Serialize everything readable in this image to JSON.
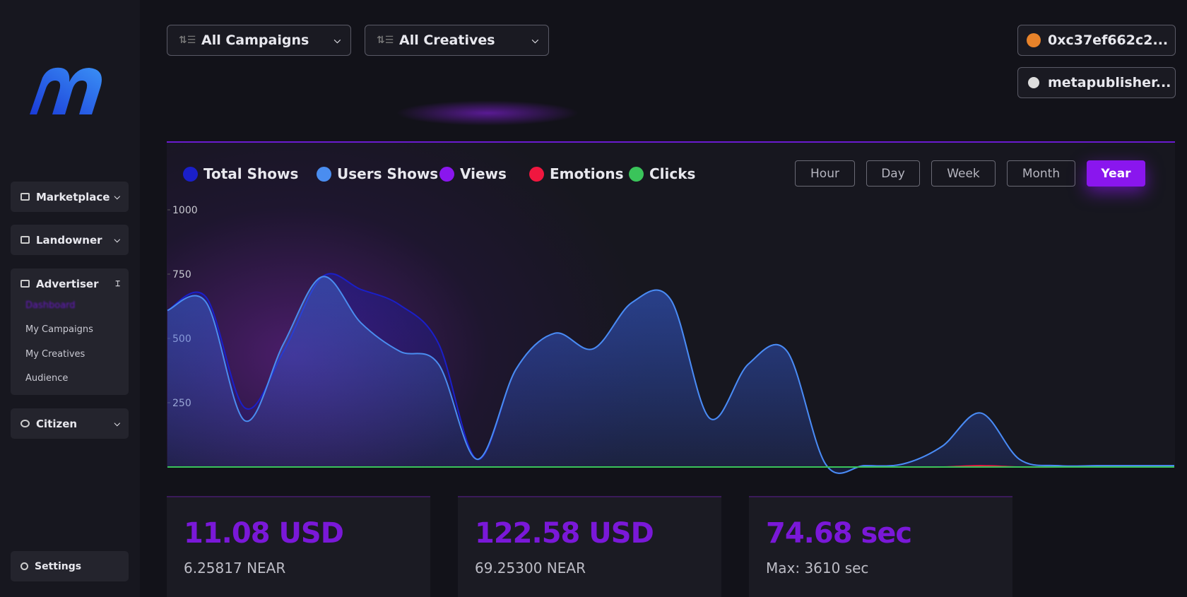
{
  "sidebar": {
    "items": [
      "Marketplace",
      "Landowner",
      "Advertiser",
      "Citizen"
    ],
    "advertiser_submenu": [
      "Dashboard",
      "My Campaigns",
      "My Creatives",
      "Audience"
    ],
    "settings": "Settings"
  },
  "filters": [
    "All Campaigns",
    "All Creatives"
  ],
  "account": {
    "wallet": "0xc37ef662c2...",
    "user": "metapublisher..."
  },
  "chart_data": {
    "type": "line",
    "range_buttons": [
      "Hour",
      "Day",
      "Week",
      "Month",
      "Year"
    ],
    "ylim": [
      0,
      1000
    ],
    "yticks": [
      250,
      500,
      750,
      1000
    ],
    "series": [
      {
        "name": "Total Shows",
        "color": "#1a1fc9",
        "values": [
          609,
          660,
          230,
          450,
          740,
          690,
          630,
          480,
          30,
          380,
          520,
          460,
          640,
          650,
          190,
          400,
          450,
          10,
          5,
          12,
          80,
          210,
          30,
          5,
          5,
          5,
          5
        ]
      },
      {
        "name": "Users Shows",
        "color": "#4a8df0",
        "values": [
          609,
          640,
          180,
          480,
          740,
          560,
          450,
          400,
          30,
          380,
          520,
          460,
          640,
          650,
          190,
          400,
          450,
          10,
          5,
          12,
          80,
          210,
          30,
          5,
          5,
          5,
          5
        ]
      },
      {
        "name": "Views",
        "color": "#8a16ee",
        "values": [
          0,
          0,
          0,
          0,
          0,
          0,
          0,
          0,
          0,
          0,
          0,
          0,
          0,
          0,
          0,
          0,
          0,
          0,
          0,
          0,
          0,
          0,
          0,
          0,
          0,
          0,
          0
        ]
      },
      {
        "name": "Emotions",
        "color": "#f0173f",
        "values": [
          0,
          0,
          0,
          0,
          0,
          0,
          0,
          0,
          0,
          0,
          0,
          0,
          0,
          0,
          0,
          0,
          0,
          0,
          0,
          0,
          0,
          5,
          0,
          0,
          0,
          0,
          0
        ]
      },
      {
        "name": "Clicks",
        "color": "#3ac45a",
        "values": [
          0,
          0,
          0,
          0,
          0,
          0,
          0,
          0,
          0,
          0,
          0,
          0,
          0,
          0,
          0,
          0,
          0,
          0,
          0,
          0,
          0,
          0,
          0,
          0,
          0,
          0,
          0
        ]
      }
    ]
  },
  "cards": [
    {
      "value": "11.08 USD",
      "sub": "6.25817 NEAR"
    },
    {
      "value": "122.58 USD",
      "sub": "69.25300 NEAR"
    },
    {
      "value": "74.68 sec",
      "sub": "Max: 3610 sec"
    }
  ]
}
